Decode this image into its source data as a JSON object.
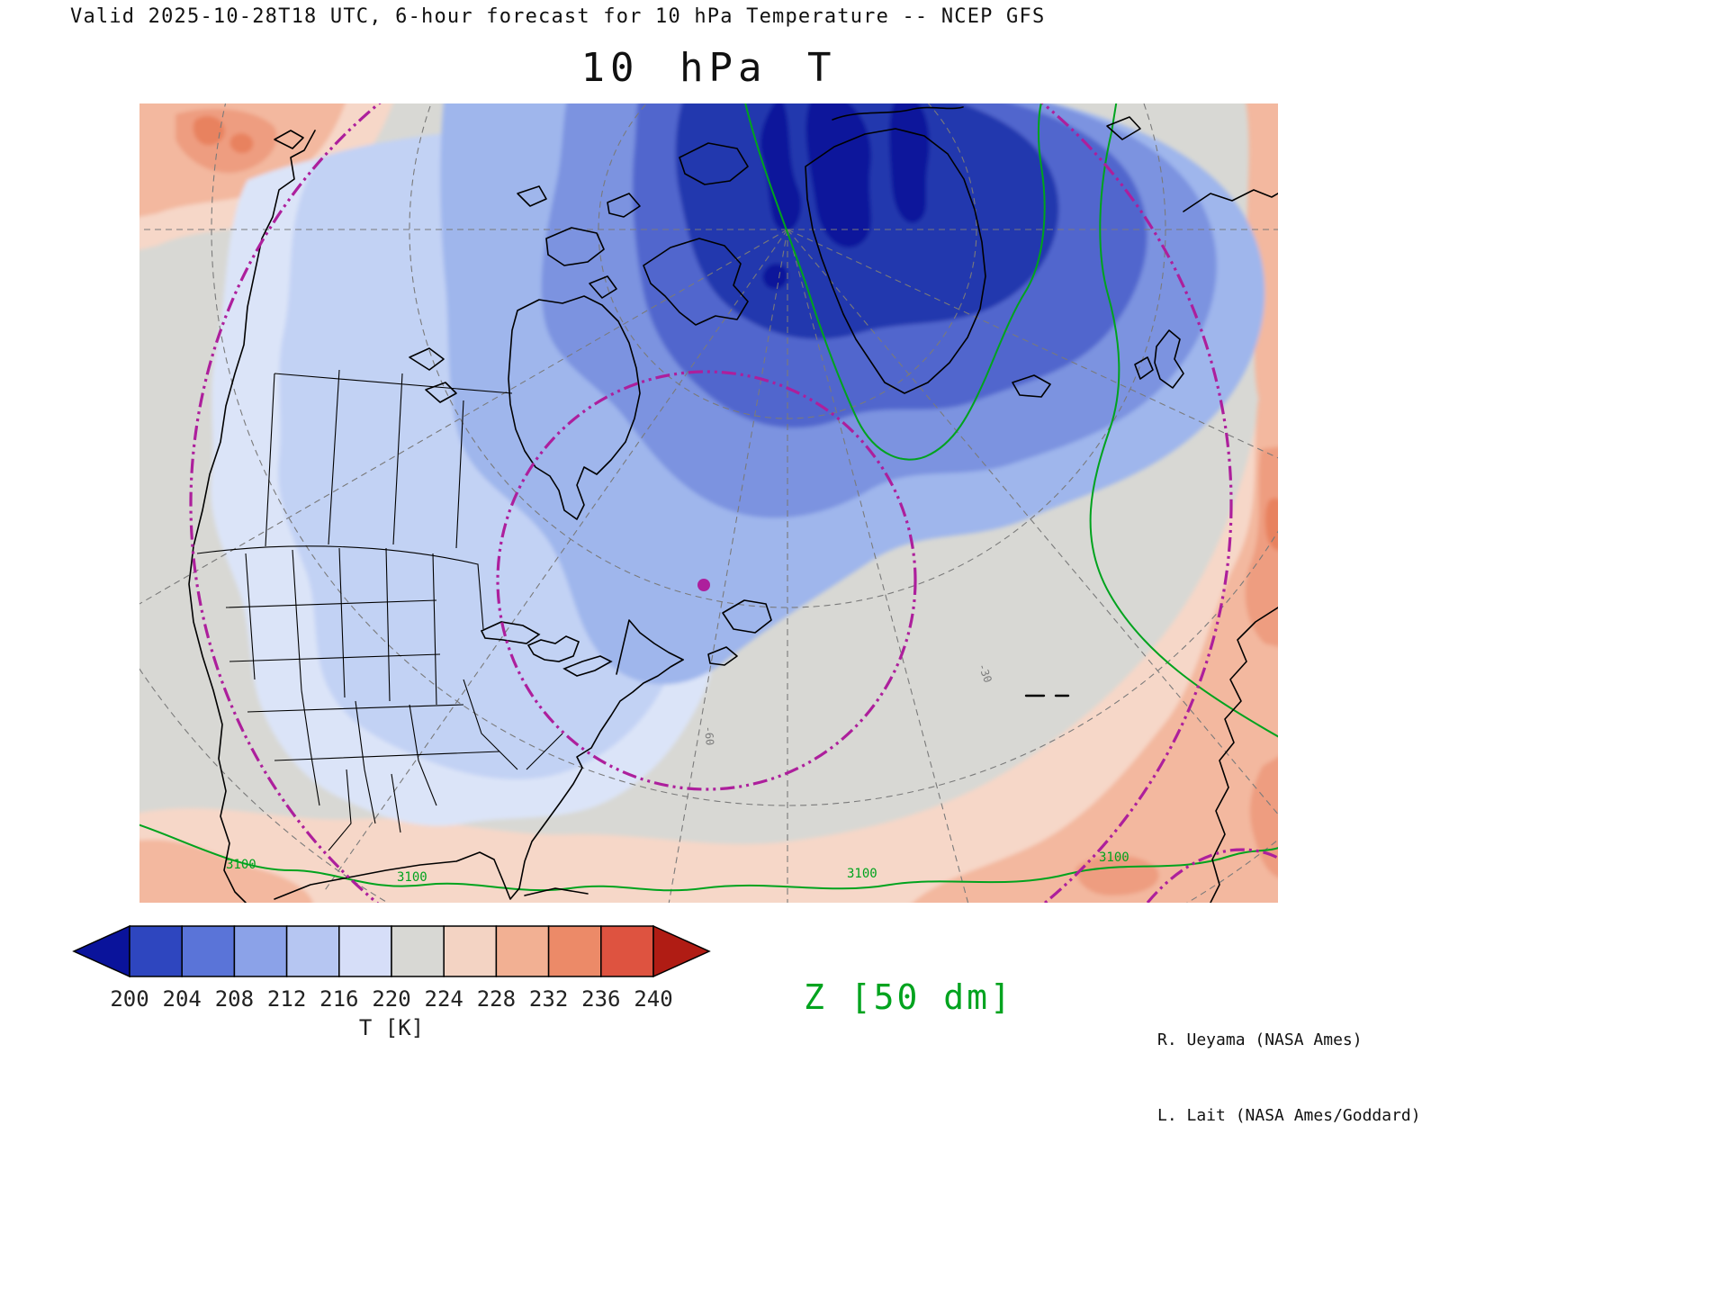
{
  "header": {
    "valid_line": "Valid 2025-10-28T18 UTC, 6-hour forecast for 10 hPa Temperature -- NCEP GFS"
  },
  "title": "10 hPa T",
  "map": {
    "contour_label": "3100",
    "graticule_labels": [
      "-60",
      "-30"
    ],
    "colors": {
      "coldest": "#08129b",
      "cold4": "#2438ae",
      "cold3": "#5166cd",
      "cold2": "#7b93e0",
      "cold1": "#9fb6ec",
      "cool2": "#c2d2f4",
      "cool1": "#dbe4f8",
      "neutral": "#d8d8d4",
      "warm1": "#f6d7c8",
      "warm2": "#f3b89f",
      "warm3": "#ee9d80",
      "warm4": "#e8825f",
      "contour_green": "#00a31e",
      "annotation_magenta": "#ad1f9c",
      "coastline": "#000000",
      "graticule": "#7a7a7a"
    }
  },
  "colorbar": {
    "ticks": [
      "200",
      "204",
      "208",
      "212",
      "216",
      "220",
      "224",
      "228",
      "232",
      "236",
      "240"
    ],
    "xlabel": "T [K]",
    "segment_colors": [
      "#2e46bf",
      "#5a74d8",
      "#8ba2e8",
      "#b6c6f2",
      "#d6def8",
      "#d8d8d4",
      "#f3d3c3",
      "#f2b093",
      "#ec8a68",
      "#de5340"
    ],
    "left_arrow_color": "#0a139b",
    "right_arrow_color": "#b01c14"
  },
  "legend": {
    "z_label": "Z [50 dm]",
    "z_color": "#00a31e"
  },
  "credits": {
    "line1": "R. Ueyama (NASA Ames)",
    "line2": "L. Lait (NASA Ames/Goddard)"
  },
  "chart_data": {
    "type": "heatmap",
    "title": "10 hPa T",
    "subtitle": "Valid 2025-10-28T18 UTC, 6-hour forecast for 10 hPa Temperature -- NCEP GFS",
    "field": "Temperature at 10 hPa",
    "model": "NCEP GFS",
    "units": "K",
    "colorbar_ticks": [
      200,
      204,
      208,
      212,
      216,
      220,
      224,
      228,
      232,
      236,
      240
    ],
    "colorbar_label": "T [K]",
    "overlay_contour": "Z [50 dm]",
    "visible_contour_value": 3100,
    "legend_position": "bottom",
    "notes": "Cold polar vortex core (deep blue, < 200 K) over Arctic; warm (salmon, > 224 K) at low latitudes and eastern edge; magenta dash-dot circles and station dot annotations"
  }
}
